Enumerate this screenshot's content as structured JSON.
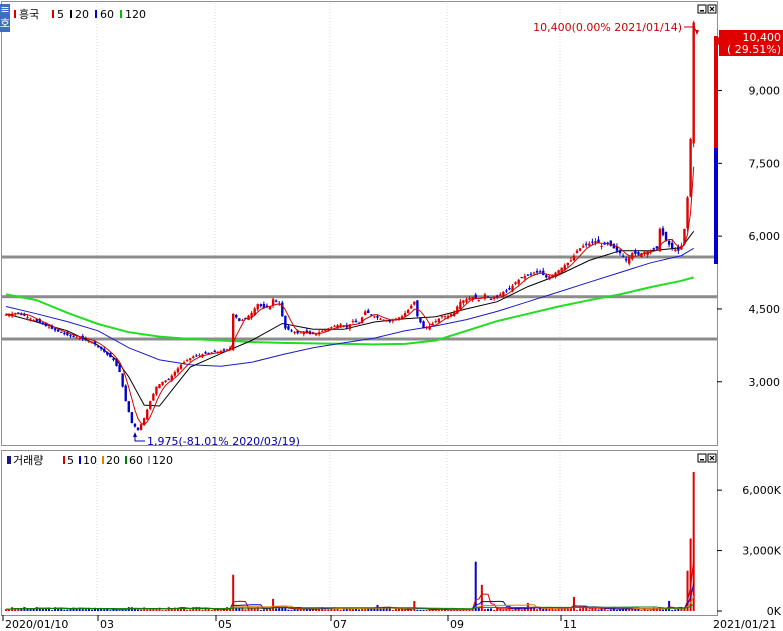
{
  "chart_data": [
    {
      "type": "candlestick",
      "title": "흥국",
      "legend_title": "흥국",
      "legend": [
        {
          "label": "5",
          "color": "#d40000"
        },
        {
          "label": "20",
          "color": "#000000"
        },
        {
          "label": "60",
          "color": "#0000c8"
        },
        {
          "label": "120",
          "color": "#00c000"
        }
      ],
      "y_ticks": [
        "9,000",
        "7,500",
        "6,000",
        "4,500",
        "3,000"
      ],
      "y_tick_values": [
        9000,
        7500,
        6000,
        4500,
        3000
      ],
      "ylim": [
        1800,
        10700
      ],
      "x_ticks": [
        "2020/01/10",
        "03",
        "05",
        "07",
        "09",
        "11"
      ],
      "x_end_label": "2021/01/21",
      "last_price_label": "10,400",
      "last_change_label": "( 29.51%)",
      "high_annotation": "10,400(0.00% 2021/01/14)",
      "low_annotation": "1,975(-81.01% 2020/03/19)",
      "support_lines": [
        5570,
        4750,
        3880
      ],
      "close_path": [
        [
          0,
          4380
        ],
        [
          4,
          4420
        ],
        [
          8,
          4300
        ],
        [
          12,
          4180
        ],
        [
          16,
          4060
        ],
        [
          20,
          3960
        ],
        [
          24,
          3900
        ],
        [
          28,
          3820
        ],
        [
          31,
          3680
        ],
        [
          33,
          3560
        ],
        [
          35,
          3450
        ],
        [
          37,
          3200
        ],
        [
          39,
          2600
        ],
        [
          41,
          2150
        ],
        [
          43,
          2000
        ],
        [
          45,
          2250
        ],
        [
          47,
          2600
        ],
        [
          49,
          2900
        ],
        [
          51,
          3000
        ],
        [
          53,
          3050
        ],
        [
          55,
          3200
        ],
        [
          57,
          3350
        ],
        [
          59,
          3450
        ],
        [
          61,
          3520
        ],
        [
          63,
          3550
        ],
        [
          65,
          3580
        ],
        [
          67,
          3600
        ],
        [
          69,
          3620
        ],
        [
          71,
          3640
        ],
        [
          73,
          3700
        ],
        [
          74,
          4400
        ],
        [
          76,
          4250
        ],
        [
          78,
          4300
        ],
        [
          80,
          4420
        ],
        [
          82,
          4600
        ],
        [
          84,
          4520
        ],
        [
          86,
          4550
        ],
        [
          87,
          4700
        ],
        [
          89,
          4600
        ],
        [
          91,
          4100
        ],
        [
          93,
          4050
        ],
        [
          95,
          4000
        ],
        [
          97,
          4030
        ],
        [
          99,
          3980
        ],
        [
          101,
          3990
        ],
        [
          103,
          4050
        ],
        [
          105,
          4100
        ],
        [
          107,
          4150
        ],
        [
          109,
          4180
        ],
        [
          111,
          4120
        ],
        [
          113,
          4250
        ],
        [
          115,
          4200
        ],
        [
          117,
          4450
        ],
        [
          119,
          4380
        ],
        [
          121,
          4320
        ],
        [
          123,
          4280
        ],
        [
          125,
          4250
        ],
        [
          127,
          4300
        ],
        [
          129,
          4350
        ],
        [
          131,
          4480
        ],
        [
          133,
          4650
        ],
        [
          134,
          4350
        ],
        [
          136,
          4100
        ],
        [
          138,
          4150
        ],
        [
          140,
          4250
        ],
        [
          142,
          4350
        ],
        [
          144,
          4350
        ],
        [
          146,
          4450
        ],
        [
          148,
          4650
        ],
        [
          150,
          4700
        ],
        [
          152,
          4750
        ],
        [
          154,
          4680
        ],
        [
          156,
          4800
        ],
        [
          158,
          4700
        ],
        [
          160,
          4750
        ],
        [
          162,
          4850
        ],
        [
          164,
          4900
        ],
        [
          166,
          5050
        ],
        [
          168,
          5150
        ],
        [
          170,
          5200
        ],
        [
          172,
          5250
        ],
        [
          174,
          5250
        ],
        [
          176,
          5150
        ],
        [
          178,
          5200
        ],
        [
          180,
          5300
        ],
        [
          182,
          5400
        ],
        [
          184,
          5500
        ],
        [
          186,
          5700
        ],
        [
          188,
          5800
        ],
        [
          190,
          5850
        ],
        [
          192,
          5900
        ],
        [
          194,
          5800
        ],
        [
          196,
          5850
        ],
        [
          198,
          5750
        ],
        [
          200,
          5650
        ],
        [
          202,
          5500
        ],
        [
          204,
          5650
        ],
        [
          206,
          5620
        ],
        [
          208,
          5680
        ],
        [
          210,
          5700
        ],
        [
          212,
          5750
        ],
        [
          213,
          6150
        ],
        [
          215,
          5900
        ],
        [
          217,
          5750
        ],
        [
          219,
          5700
        ],
        [
          220,
          5800
        ],
        [
          221,
          6150
        ],
        [
          222,
          6800
        ],
        [
          223,
          8000
        ],
        [
          224,
          10400
        ]
      ],
      "ma120_path": [
        [
          0,
          4800
        ],
        [
          10,
          4680
        ],
        [
          20,
          4420
        ],
        [
          30,
          4190
        ],
        [
          40,
          4020
        ],
        [
          50,
          3930
        ],
        [
          60,
          3880
        ],
        [
          70,
          3850
        ],
        [
          80,
          3820
        ],
        [
          90,
          3800
        ],
        [
          100,
          3790
        ],
        [
          110,
          3780
        ],
        [
          120,
          3770
        ],
        [
          130,
          3780
        ],
        [
          140,
          3850
        ],
        [
          150,
          4050
        ],
        [
          160,
          4250
        ],
        [
          170,
          4400
        ],
        [
          180,
          4550
        ],
        [
          190,
          4680
        ],
        [
          200,
          4800
        ],
        [
          210,
          4950
        ],
        [
          220,
          5080
        ],
        [
          224,
          5150
        ]
      ],
      "ma60_path": [
        [
          0,
          4550
        ],
        [
          10,
          4400
        ],
        [
          20,
          4240
        ],
        [
          30,
          4050
        ],
        [
          40,
          3700
        ],
        [
          50,
          3450
        ],
        [
          60,
          3350
        ],
        [
          70,
          3320
        ],
        [
          80,
          3400
        ],
        [
          90,
          3560
        ],
        [
          100,
          3700
        ],
        [
          110,
          3800
        ],
        [
          120,
          3900
        ],
        [
          130,
          4050
        ],
        [
          140,
          4150
        ],
        [
          150,
          4280
        ],
        [
          160,
          4450
        ],
        [
          170,
          4650
        ],
        [
          180,
          4850
        ],
        [
          190,
          5050
        ],
        [
          200,
          5250
        ],
        [
          210,
          5450
        ],
        [
          220,
          5600
        ],
        [
          224,
          5750
        ]
      ],
      "ma20_path": [
        [
          0,
          4400
        ],
        [
          10,
          4230
        ],
        [
          20,
          4050
        ],
        [
          30,
          3750
        ],
        [
          36,
          3450
        ],
        [
          40,
          3100
        ],
        [
          45,
          2520
        ],
        [
          50,
          2500
        ],
        [
          55,
          2900
        ],
        [
          60,
          3300
        ],
        [
          70,
          3580
        ],
        [
          80,
          3850
        ],
        [
          90,
          4200
        ],
        [
          100,
          4080
        ],
        [
          110,
          4080
        ],
        [
          120,
          4230
        ],
        [
          130,
          4300
        ],
        [
          140,
          4340
        ],
        [
          150,
          4500
        ],
        [
          160,
          4650
        ],
        [
          170,
          4960
        ],
        [
          180,
          5200
        ],
        [
          190,
          5500
        ],
        [
          200,
          5700
        ],
        [
          210,
          5700
        ],
        [
          220,
          5760
        ],
        [
          224,
          6100
        ]
      ],
      "volume": {
        "legend_title": "거래량",
        "legend": [
          {
            "label": "5",
            "color": "#d40000"
          },
          {
            "label": "10",
            "color": "#0000c8"
          },
          {
            "label": "20",
            "color": "#e08000"
          },
          {
            "label": "60",
            "color": "#008000"
          },
          {
            "label": "120",
            "color": "#a0a0a0"
          }
        ],
        "y_ticks": [
          "6,000K",
          "3,000K",
          "0K"
        ],
        "y_tick_values": [
          6000,
          3000,
          0
        ],
        "ylim": [
          0,
          7200
        ],
        "unit": "K",
        "spikes": [
          {
            "i": 74,
            "v": 1800
          },
          {
            "i": 87,
            "v": 600
          },
          {
            "i": 121,
            "v": 300
          },
          {
            "i": 133,
            "v": 500
          },
          {
            "i": 153,
            "v": 2450
          },
          {
            "i": 155,
            "v": 1300
          },
          {
            "i": 170,
            "v": 400
          },
          {
            "i": 185,
            "v": 700
          },
          {
            "i": 216,
            "v": 500
          },
          {
            "i": 222,
            "v": 2000
          },
          {
            "i": 223,
            "v": 3600
          },
          {
            "i": 224,
            "v": 6900
          }
        ]
      }
    }
  ]
}
